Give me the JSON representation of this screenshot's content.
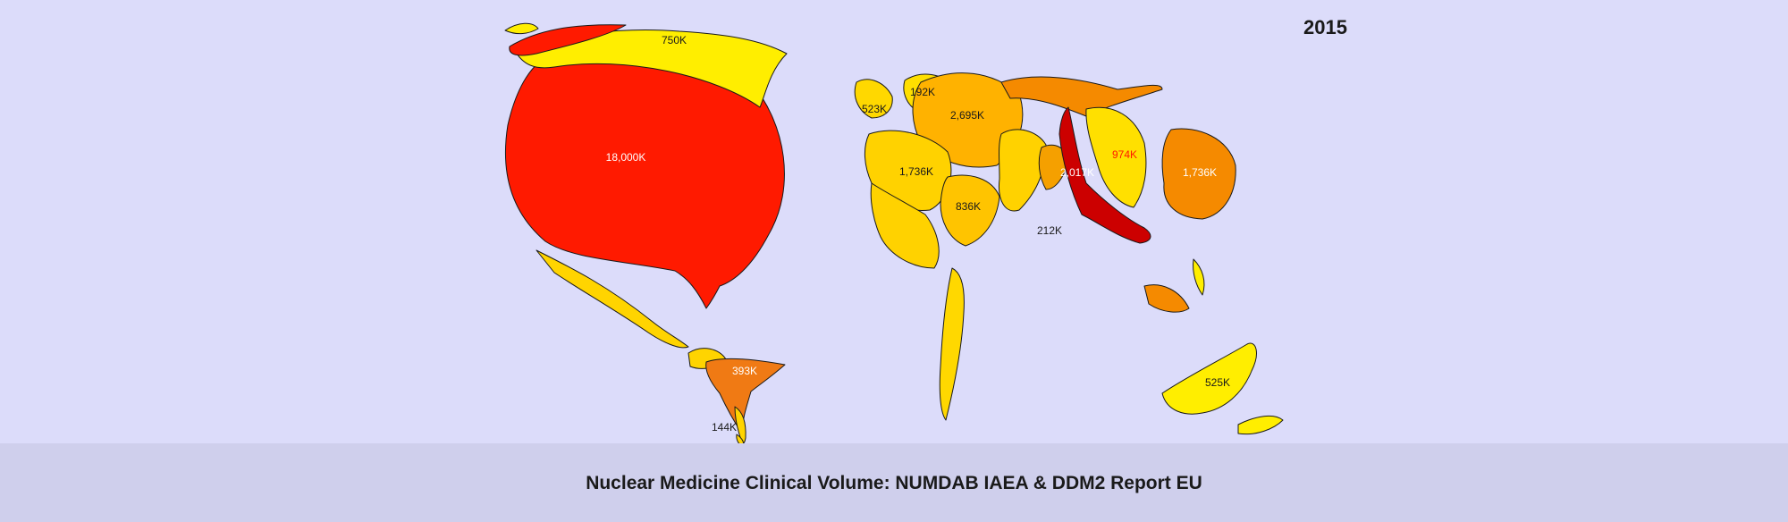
{
  "year": "2015",
  "caption": "Nuclear Medicine Clinical Volume: NUMDAB IAEA & DDM2 Report EU",
  "colors": {
    "background": "#dcdcfa",
    "footer": "#cfcfec",
    "outline": "#1a1a1a"
  },
  "regions": [
    {
      "label": "18,000K",
      "fill": "#ff1a00",
      "text_color": "#ffffff"
    },
    {
      "label": "750K",
      "fill": "#ffee00",
      "text_color": "#1a1a1a"
    },
    {
      "label": "393K",
      "fill": "#f07a14",
      "text_color": "#ffffff"
    },
    {
      "label": "144K",
      "fill": "#ffd400",
      "text_color": "#1a1a1a"
    },
    {
      "label": "523K",
      "fill": "#ffd800",
      "text_color": "#1a1a1a"
    },
    {
      "label": "192K",
      "fill": "#ffdf00",
      "text_color": "#1a1a1a"
    },
    {
      "label": "2,695K",
      "fill": "#ffb200",
      "text_color": "#1a1a1a"
    },
    {
      "label": "1,736K",
      "fill": "#ffd200",
      "text_color": "#1a1a1a"
    },
    {
      "label": "836K",
      "fill": "#ffc400",
      "text_color": "#1a1a1a"
    },
    {
      "label": "2,017K",
      "fill": "#cc0000",
      "text_color": "#ffffff"
    },
    {
      "label": "974K",
      "fill": "#ffe000",
      "text_color": "#ff1a00"
    },
    {
      "label": "1,736K",
      "fill": "#f58a00",
      "text_color": "#ffffff"
    },
    {
      "label": "212K",
      "fill": "#f5a000",
      "text_color": "#1a1a1a"
    },
    {
      "label": "525K",
      "fill": "#ffee00",
      "text_color": "#1a1a1a"
    }
  ]
}
